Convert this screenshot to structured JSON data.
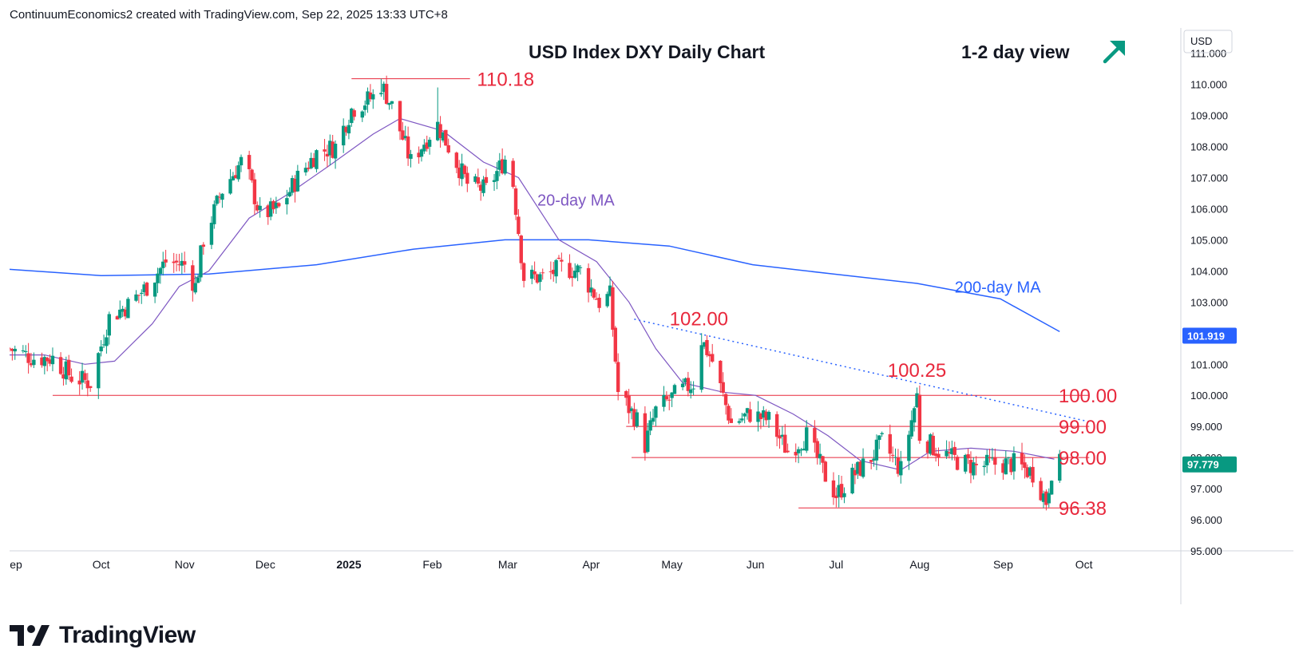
{
  "header": {
    "attribution": "ContinuumEconomics2 created with TradingView.com, Sep 22, 2025 13:33 UTC+8"
  },
  "footer": {
    "brand": "TradingView"
  },
  "colors": {
    "bull": "#089981",
    "bear": "#f23645",
    "ma20": "#7e57c2",
    "ma200": "#2962ff",
    "level": "#e8283c",
    "trend": "#2962ff",
    "text": "#131722"
  },
  "chart_data": {
    "type": "candlestick",
    "title": "USD Index DXY Daily Chart",
    "view_label": "1-2 day view",
    "view_icon": "arrow-up-right-icon",
    "currency": "USD",
    "ylim": [
      95.0,
      111.3
    ],
    "y_ticks": [
      "95.000",
      "96.000",
      "97.000",
      "98.000",
      "99.000",
      "100.000",
      "101.000",
      "102.000",
      "103.000",
      "104.000",
      "105.000",
      "106.000",
      "107.000",
      "108.000",
      "109.000",
      "110.000",
      "111.000"
    ],
    "x_ticks": [
      {
        "label": "Sep",
        "date": "2024-08-29"
      },
      {
        "label": "Oct",
        "date": "2024-10-01"
      },
      {
        "label": "Nov",
        "date": "2024-11-01"
      },
      {
        "label": "Dec",
        "date": "2024-12-01"
      },
      {
        "label": "2025",
        "date": "2025-01-01",
        "bold": true
      },
      {
        "label": "Feb",
        "date": "2025-02-01"
      },
      {
        "label": "Mar",
        "date": "2025-03-01"
      },
      {
        "label": "Apr",
        "date": "2025-04-01"
      },
      {
        "label": "May",
        "date": "2025-05-01"
      },
      {
        "label": "Jun",
        "date": "2025-06-01"
      },
      {
        "label": "Jul",
        "date": "2025-07-01"
      },
      {
        "label": "Aug",
        "date": "2025-08-01"
      },
      {
        "label": "Sep",
        "date": "2025-09-01"
      },
      {
        "label": "Oct",
        "date": "2025-10-01"
      }
    ],
    "x_range": [
      "2024-08-28",
      "2025-11-06"
    ],
    "price_path": [
      [
        "2024-08-28",
        101.5
      ],
      [
        "2024-09-06",
        101.2
      ],
      [
        "2024-09-13",
        101.2
      ],
      [
        "2024-09-20",
        100.6
      ],
      [
        "2024-09-27",
        100.4
      ],
      [
        "2024-10-04",
        102.5
      ],
      [
        "2024-10-11",
        102.9
      ],
      [
        "2024-10-18",
        103.5
      ],
      [
        "2024-10-25",
        104.3
      ],
      [
        "2024-11-01",
        104.2
      ],
      [
        "2024-11-05",
        103.5
      ],
      [
        "2024-11-08",
        105.0
      ],
      [
        "2024-11-15",
        106.6
      ],
      [
        "2024-11-22",
        107.5
      ],
      [
        "2024-11-25",
        107.0
      ],
      [
        "2024-11-29",
        105.8
      ],
      [
        "2024-12-06",
        106.0
      ],
      [
        "2024-12-13",
        107.0
      ],
      [
        "2024-12-20",
        107.8
      ],
      [
        "2024-12-27",
        108.0
      ],
      [
        "2025-01-02",
        109.2
      ],
      [
        "2025-01-10",
        109.6
      ],
      [
        "2025-01-13",
        110.0
      ],
      [
        "2025-01-17",
        109.3
      ],
      [
        "2025-01-24",
        107.5
      ],
      [
        "2025-01-31",
        108.4
      ],
      [
        "2025-02-03",
        108.7
      ],
      [
        "2025-02-07",
        108.0
      ],
      [
        "2025-02-14",
        106.8
      ],
      [
        "2025-02-21",
        106.6
      ],
      [
        "2025-02-28",
        107.6
      ],
      [
        "2025-03-03",
        106.8
      ],
      [
        "2025-03-07",
        103.8
      ],
      [
        "2025-03-14",
        103.8
      ],
      [
        "2025-03-21",
        104.1
      ],
      [
        "2025-03-28",
        104.0
      ],
      [
        "2025-04-04",
        103.0
      ],
      [
        "2025-04-08",
        103.2
      ],
      [
        "2025-04-11",
        100.1
      ],
      [
        "2025-04-18",
        99.2
      ],
      [
        "2025-04-21",
        98.4
      ],
      [
        "2025-04-25",
        99.5
      ],
      [
        "2025-05-02",
        100.0
      ],
      [
        "2025-05-09",
        100.4
      ],
      [
        "2025-05-12",
        101.8
      ],
      [
        "2025-05-16",
        101.1
      ],
      [
        "2025-05-23",
        99.1
      ],
      [
        "2025-05-30",
        99.4
      ],
      [
        "2025-06-06",
        99.2
      ],
      [
        "2025-06-13",
        98.2
      ],
      [
        "2025-06-20",
        98.7
      ],
      [
        "2025-06-27",
        97.4
      ],
      [
        "2025-07-01",
        96.8
      ],
      [
        "2025-07-07",
        97.4
      ],
      [
        "2025-07-14",
        98.0
      ],
      [
        "2025-07-18",
        98.5
      ],
      [
        "2025-07-25",
        97.6
      ],
      [
        "2025-07-31",
        100.0
      ],
      [
        "2025-08-01",
        98.7
      ],
      [
        "2025-08-08",
        98.2
      ],
      [
        "2025-08-15",
        97.9
      ],
      [
        "2025-08-22",
        97.7
      ],
      [
        "2025-08-29",
        97.8
      ],
      [
        "2025-09-05",
        97.8
      ],
      [
        "2025-09-12",
        97.5
      ],
      [
        "2025-09-17",
        96.6
      ],
      [
        "2025-09-19",
        97.6
      ],
      [
        "2025-09-22",
        97.78
      ]
    ],
    "lows_override": [
      [
        "2025-07-01",
        96.4
      ],
      [
        "2025-09-17",
        96.3
      ],
      [
        "2025-09-15",
        96.6
      ]
    ],
    "ma20_path": [
      [
        "2024-08-28",
        101.3
      ],
      [
        "2024-09-10",
        101.3
      ],
      [
        "2024-09-25",
        101.0
      ],
      [
        "2024-10-06",
        101.1
      ],
      [
        "2024-10-20",
        102.3
      ],
      [
        "2024-10-30",
        103.5
      ],
      [
        "2024-11-10",
        104.0
      ],
      [
        "2024-11-25",
        105.7
      ],
      [
        "2024-12-10",
        106.5
      ],
      [
        "2024-12-25",
        107.4
      ],
      [
        "2025-01-10",
        108.4
      ],
      [
        "2025-01-20",
        108.9
      ],
      [
        "2025-02-05",
        108.5
      ],
      [
        "2025-02-20",
        107.5
      ],
      [
        "2025-03-05",
        107.0
      ],
      [
        "2025-03-20",
        105.0
      ],
      [
        "2025-04-03",
        104.3
      ],
      [
        "2025-04-15",
        103.0
      ],
      [
        "2025-04-25",
        101.5
      ],
      [
        "2025-05-05",
        100.4
      ],
      [
        "2025-05-20",
        100.1
      ],
      [
        "2025-06-01",
        100.0
      ],
      [
        "2025-06-15",
        99.4
      ],
      [
        "2025-06-28",
        98.7
      ],
      [
        "2025-07-10",
        97.9
      ],
      [
        "2025-07-25",
        97.6
      ],
      [
        "2025-08-05",
        98.2
      ],
      [
        "2025-08-20",
        98.3
      ],
      [
        "2025-09-05",
        98.2
      ],
      [
        "2025-09-20",
        97.95
      ]
    ],
    "ma200_path": [
      [
        "2024-08-28",
        104.05
      ],
      [
        "2024-10-01",
        103.85
      ],
      [
        "2024-11-10",
        103.9
      ],
      [
        "2024-12-20",
        104.2
      ],
      [
        "2025-01-25",
        104.7
      ],
      [
        "2025-02-28",
        105.0
      ],
      [
        "2025-03-31",
        105.0
      ],
      [
        "2025-04-30",
        104.8
      ],
      [
        "2025-05-31",
        104.2
      ],
      [
        "2025-06-30",
        103.9
      ],
      [
        "2025-07-31",
        103.6
      ],
      [
        "2025-08-31",
        103.1
      ],
      [
        "2025-09-22",
        102.05
      ]
    ],
    "indicators": [
      {
        "name": "20-day MA",
        "label_date": "2025-03-12",
        "label_value": 106.1,
        "color": "#7e57c2"
      },
      {
        "name": "200-day MA",
        "label_date": "2025-08-14",
        "label_value": 103.3,
        "color": "#2962ff"
      }
    ],
    "levels": [
      {
        "label": "110.18",
        "value": 110.18,
        "start": "2025-01-02",
        "end": "2025-02-15",
        "label_date": "2025-02-17"
      },
      {
        "label": "100.00",
        "value": 100.0,
        "start": "2024-09-13",
        "end": "2025-10-03",
        "label_date": "2025-09-21"
      },
      {
        "label": "99.00",
        "value": 99.0,
        "start": "2025-04-14",
        "end": "2025-10-03",
        "label_date": "2025-09-21"
      },
      {
        "label": "98.00",
        "value": 98.0,
        "start": "2025-04-16",
        "end": "2025-10-03",
        "label_date": "2025-09-21"
      },
      {
        "label": "96.38",
        "value": 96.38,
        "start": "2025-06-17",
        "end": "2025-10-03",
        "label_date": "2025-09-21"
      }
    ],
    "annotations": [
      {
        "label": "102.00",
        "date": "2025-05-11",
        "value": 102.25
      },
      {
        "label": "100.25",
        "date": "2025-07-31",
        "value": 100.6
      }
    ],
    "trendline": {
      "start": [
        "2025-04-17",
        102.45
      ],
      "end": [
        "2025-10-03",
        99.15
      ],
      "style": "dotted"
    },
    "price_tags": [
      {
        "label": "101.919",
        "value": 101.919,
        "color": "#2962ff"
      },
      {
        "label": "97.779",
        "value": 97.779,
        "color": "#089981"
      }
    ]
  }
}
